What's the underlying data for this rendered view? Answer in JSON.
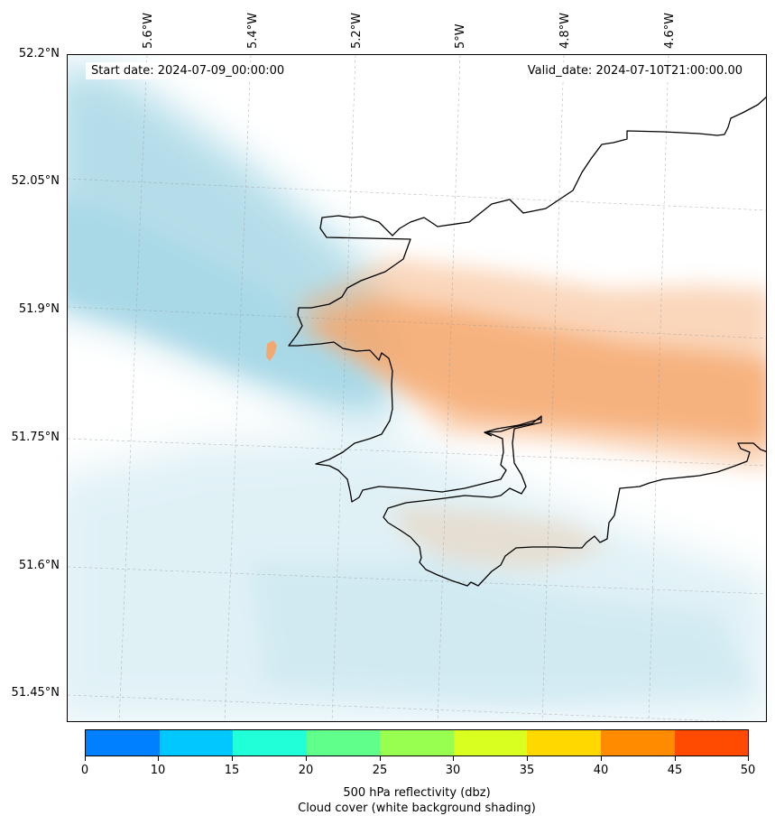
{
  "map": {
    "start_date": "Start date: 2024-07-09_00:00:00",
    "valid_date": "Valid_date: 2024-07-10T21:00:00.00",
    "lat_labels": [
      "52.2°N",
      "52.05°N",
      "51.9°N",
      "51.75°N",
      "51.6°N",
      "51.45°N"
    ],
    "lon_labels": [
      "5.6°W",
      "5.4°W",
      "5.2°W",
      "5°W",
      "4.8°W",
      "4.6°W"
    ],
    "cloud_color": "#a8d8e6",
    "reflectivity_color": "#f5a66a"
  },
  "colorbar": {
    "ticks": [
      "0",
      "10",
      "15",
      "20",
      "25",
      "30",
      "35",
      "40",
      "45",
      "50"
    ],
    "colors": [
      "#0080ff",
      "#00c8ff",
      "#20ffd8",
      "#60ff8c",
      "#98ff50",
      "#d8ff20",
      "#ffd800",
      "#ff8c00",
      "#ff4a00"
    ],
    "label_line1": "500 hPa reflectivity (dbz)",
    "label_line2": "Cloud cover (white background shading)"
  }
}
